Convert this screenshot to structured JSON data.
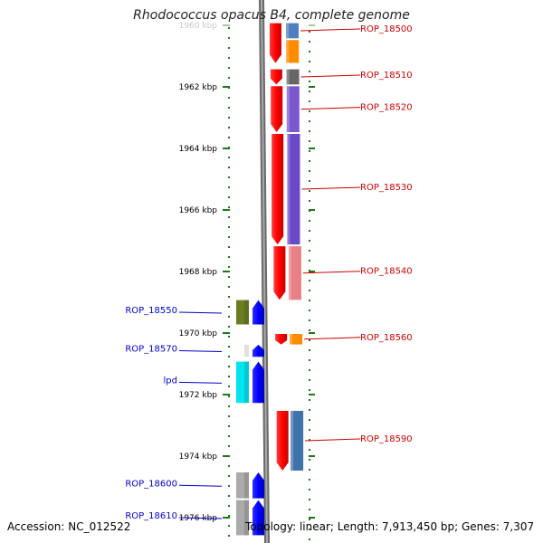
{
  "title": "Rhodococcus opacus B4, complete genome",
  "footer": {
    "accession": "Accession: NC_012522",
    "summary": "Topology: linear; Length: 7,913,450 bp; Genes: 7,307"
  },
  "colors": {
    "backbone": "#777777",
    "tick": "#1a7a1a",
    "label_right": "#cc0000",
    "label_left": "#0000cc"
  },
  "axis": {
    "unit": "kbp",
    "ticks": [
      {
        "label": "1960 kbp",
        "kbp": 1960,
        "faded": true
      },
      {
        "label": "1962 kbp",
        "kbp": 1962
      },
      {
        "label": "1964 kbp",
        "kbp": 1964
      },
      {
        "label": "1966 kbp",
        "kbp": 1966
      },
      {
        "label": "1968 kbp",
        "kbp": 1968
      },
      {
        "label": "1970 kbp",
        "kbp": 1970
      },
      {
        "label": "1972 kbp",
        "kbp": 1972
      },
      {
        "label": "1974 kbp",
        "kbp": 1974
      },
      {
        "label": "1976 kbp",
        "kbp": 1976
      }
    ]
  },
  "genes_right": [
    {
      "label": "ROP_18500",
      "start_kbp": 1959.9,
      "end_kbp": 1960.45,
      "color": "#4f7fc0"
    },
    {
      "label": "",
      "start_kbp": 1960.45,
      "end_kbp": 1961.25,
      "color": "#ff8c00"
    },
    {
      "label": "ROP_18510",
      "start_kbp": 1961.4,
      "end_kbp": 1961.95,
      "color": "#666666"
    },
    {
      "label": "ROP_18520",
      "start_kbp": 1961.95,
      "end_kbp": 1963.5,
      "color": "#7b58d0"
    },
    {
      "label": "ROP_18530",
      "start_kbp": 1963.5,
      "end_kbp": 1967.15,
      "color": "#6a48c8"
    },
    {
      "label": "ROP_18540",
      "start_kbp": 1967.15,
      "end_kbp": 1968.95,
      "color": "#e87f86"
    },
    {
      "label": "ROP_18560",
      "start_kbp": 1970.0,
      "end_kbp": 1970.4,
      "color": "#ff8c00"
    },
    {
      "label": "ROP_18590",
      "start_kbp": 1972.5,
      "end_kbp": 1974.5,
      "color": "#3f73aa"
    }
  ],
  "cds_right": [
    {
      "start_kbp": 1959.9,
      "end_kbp": 1961.25
    },
    {
      "start_kbp": 1961.4,
      "end_kbp": 1961.95
    },
    {
      "start_kbp": 1961.95,
      "end_kbp": 1963.5
    },
    {
      "start_kbp": 1963.5,
      "end_kbp": 1967.15
    },
    {
      "start_kbp": 1967.15,
      "end_kbp": 1968.95
    },
    {
      "start_kbp": 1970.0,
      "end_kbp": 1970.4
    },
    {
      "start_kbp": 1972.5,
      "end_kbp": 1974.5
    }
  ],
  "genes_left": [
    {
      "label": "ROP_18550",
      "start_kbp": 1968.9,
      "end_kbp": 1969.75,
      "color": "#6b7d22"
    },
    {
      "label": "ROP_18570",
      "start_kbp": 1970.35,
      "end_kbp": 1970.8,
      "color": "#ffffff"
    },
    {
      "label": "lpd",
      "start_kbp": 1970.9,
      "end_kbp": 1972.3,
      "color": "#00e5f0"
    },
    {
      "label": "ROP_18600",
      "start_kbp": 1974.5,
      "end_kbp": 1975.4,
      "color": "#aaaaaa"
    },
    {
      "label": "ROP_18610",
      "start_kbp": 1975.4,
      "end_kbp": 1976.6,
      "color": "#aaaaaa"
    }
  ],
  "cds_left": [
    {
      "start_kbp": 1968.9,
      "end_kbp": 1969.75
    },
    {
      "start_kbp": 1970.35,
      "end_kbp": 1970.8
    },
    {
      "start_kbp": 1970.9,
      "end_kbp": 1972.3
    },
    {
      "start_kbp": 1974.5,
      "end_kbp": 1975.4
    },
    {
      "start_kbp": 1975.4,
      "end_kbp": 1976.6
    }
  ]
}
